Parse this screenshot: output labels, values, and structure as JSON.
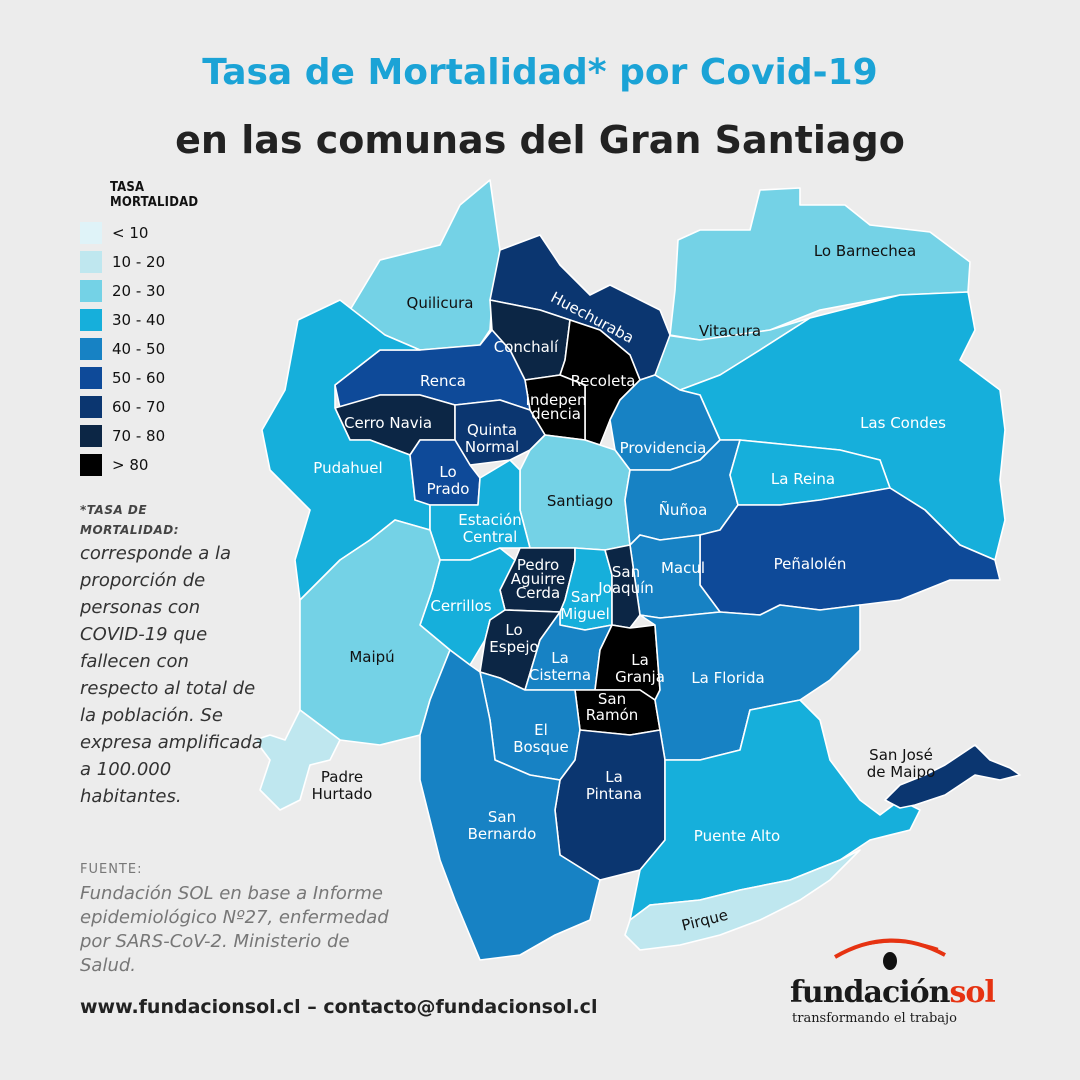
{
  "title": {
    "line1": "Tasa de Mortalidad* por Covid-19",
    "line2": "en las comunas del Gran Santiago"
  },
  "legend": {
    "title_line1": "TASA",
    "title_line2": "MORTALIDAD",
    "items": [
      {
        "label": "< 10",
        "color": "#dff3f8"
      },
      {
        "label": "10 - 20",
        "color": "#bfe7ef"
      },
      {
        "label": "20 - 30",
        "color": "#74d2e6"
      },
      {
        "label": "30 - 40",
        "color": "#16afdb"
      },
      {
        "label": "40 - 50",
        "color": "#1782c4"
      },
      {
        "label": "50 - 60",
        "color": "#0e4a99"
      },
      {
        "label": "60 - 70",
        "color": "#0b3670"
      },
      {
        "label": "70 - 80",
        "color": "#0c2645"
      },
      {
        "label": "> 80",
        "color": "#000000"
      }
    ]
  },
  "note": {
    "head_line1": "*TASA DE",
    "head_line2": "MORTALIDAD:",
    "body": "corresponde a la proporción de personas con COVID-19 que fallecen con respecto al total de la población. Se expresa amplificada a 100.000 habitantes."
  },
  "source": {
    "head": "FUENTE:",
    "body": "Fundación SOL en base a Informe epidemiológico Nº27, enfermedad por SARS-CoV-2. Ministerio de Salud."
  },
  "footer": {
    "web": "www.fundacionsol.cl  –  contacto@fundacionsol.cl"
  },
  "logo": {
    "name_part1": "fundación",
    "name_part2": "sol",
    "tagline": "transformando el trabajo",
    "eye_color": "#e63312"
  },
  "comunas": {
    "lo_barnechea": "Lo Barnechea",
    "quilicura": "Quilicura",
    "huechuraba": "Huechuraba",
    "vitacura": "Vitacura",
    "conchali": "Conchalí",
    "renca": "Renca",
    "recoleta": "Recoleta",
    "independencia_l1": "Indepen",
    "independencia_l2": "dencia",
    "cerro_navia": "Cerro Navia",
    "quinta_normal_l1": "Quinta",
    "quinta_normal_l2": "Normal",
    "providencia": "Providencia",
    "las_condes": "Las Condes",
    "pudahuel": "Pudahuel",
    "lo_prado_l1": "Lo",
    "lo_prado_l2": "Prado",
    "santiago": "Santiago",
    "la_reina": "La Reina",
    "estacion_central_l1": "Estación",
    "estacion_central_l2": "Central",
    "nunoa": "Ñuñoa",
    "pedro_aguirre_cerda_l1": "Pedro",
    "pedro_aguirre_cerda_l2": "Aguirre",
    "pedro_aguirre_cerda_l3": "Cerda",
    "san_joaquin_l1": "San",
    "san_joaquin_l2": "Joaquín",
    "macul": "Macul",
    "penalolen": "Peñalolén",
    "cerrillos": "Cerrillos",
    "san_miguel_l1": "San",
    "san_miguel_l2": "Miguel",
    "lo_espejo_l1": "Lo",
    "lo_espejo_l2": "Espejo",
    "maipu": "Maipú",
    "la_cisterna_l1": "La",
    "la_cisterna_l2": "Cisterna",
    "la_granja_l1": "La",
    "la_granja_l2": "Granja",
    "la_florida": "La Florida",
    "san_ramon_l1": "San",
    "san_ramon_l2": "Ramón",
    "el_bosque_l1": "El",
    "el_bosque_l2": "Bosque",
    "san_jose_de_maipo_l1": "San José",
    "san_jose_de_maipo_l2": "de Maipo",
    "padre_hurtado_l1": "Padre",
    "padre_hurtado_l2": "Hurtado",
    "la_pintana_l1": "La",
    "la_pintana_l2": "Pintana",
    "puente_alto": "Puente Alto",
    "san_bernardo_l1": "San",
    "san_bernardo_l2": "Bernardo",
    "pirque": "Pirque"
  }
}
